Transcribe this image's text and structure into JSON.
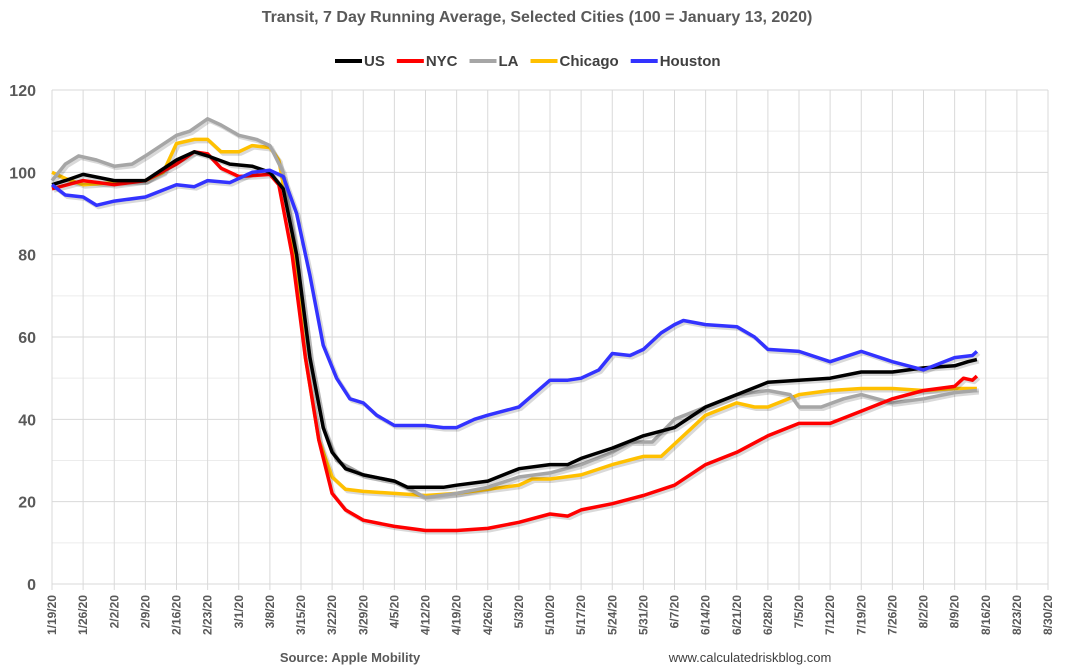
{
  "chart_data": {
    "type": "line",
    "title": "Transit, 7 Day Running Average, Selected Cities (100 = January 13, 2020)",
    "xlabel": "",
    "ylabel": "",
    "ylim": [
      0,
      120
    ],
    "yticks": [
      "0",
      "20",
      "40",
      "60",
      "80",
      "100",
      "120"
    ],
    "x_unit": "days since 1/19/20",
    "xlim": [
      0,
      224
    ],
    "xticks": [
      "1/19/20",
      "1/26/20",
      "2/2/20",
      "2/9/20",
      "2/16/20",
      "2/23/20",
      "3/1/20",
      "3/8/20",
      "3/15/20",
      "3/22/20",
      "3/29/20",
      "4/5/20",
      "4/12/20",
      "4/19/20",
      "4/26/20",
      "5/3/20",
      "5/10/20",
      "5/17/20",
      "5/24/20",
      "5/31/20",
      "6/7/20",
      "6/14/20",
      "6/21/20",
      "6/28/20",
      "7/5/20",
      "7/12/20",
      "7/19/20",
      "7/26/20",
      "8/2/20",
      "8/9/20",
      "8/16/20",
      "8/23/20",
      "8/30/20"
    ],
    "legend_position": "top",
    "grid": true,
    "source": "Source: Apple Mobility",
    "website": "www.calculatedriskblog.com",
    "series": [
      {
        "name": "US",
        "color": "#000000",
        "points": [
          [
            0,
            97
          ],
          [
            3,
            98
          ],
          [
            7,
            99.5
          ],
          [
            14,
            98
          ],
          [
            21,
            98
          ],
          [
            28,
            103
          ],
          [
            32,
            105
          ],
          [
            35,
            104
          ],
          [
            40,
            102
          ],
          [
            45,
            101.5
          ],
          [
            49,
            100
          ],
          [
            52,
            96
          ],
          [
            55,
            80
          ],
          [
            58,
            55
          ],
          [
            61,
            38
          ],
          [
            63,
            32
          ],
          [
            66,
            28
          ],
          [
            70,
            26.5
          ],
          [
            77,
            25
          ],
          [
            80,
            23.5
          ],
          [
            84,
            23.5
          ],
          [
            88,
            23.5
          ],
          [
            91,
            24
          ],
          [
            98,
            25
          ],
          [
            105,
            28
          ],
          [
            112,
            29
          ],
          [
            116,
            29
          ],
          [
            119,
            30.5
          ],
          [
            126,
            33
          ],
          [
            133,
            36
          ],
          [
            140,
            38
          ],
          [
            147,
            43
          ],
          [
            154,
            46
          ],
          [
            161,
            49
          ],
          [
            168,
            49.5
          ],
          [
            175,
            50
          ],
          [
            182,
            51.5
          ],
          [
            189,
            51.5
          ],
          [
            196,
            52.5
          ],
          [
            203,
            53
          ],
          [
            206,
            54
          ],
          [
            208,
            54.5
          ]
        ]
      },
      {
        "name": "NYC",
        "color": "#ff0000",
        "points": [
          [
            0,
            96
          ],
          [
            7,
            98
          ],
          [
            14,
            97
          ],
          [
            21,
            98
          ],
          [
            28,
            102
          ],
          [
            32,
            105
          ],
          [
            35,
            104.5
          ],
          [
            38,
            101
          ],
          [
            42,
            99
          ],
          [
            49,
            99.5
          ],
          [
            51,
            97
          ],
          [
            54,
            80
          ],
          [
            57,
            55
          ],
          [
            60,
            35
          ],
          [
            63,
            22
          ],
          [
            66,
            18
          ],
          [
            70,
            15.5
          ],
          [
            77,
            14
          ],
          [
            84,
            13
          ],
          [
            91,
            13
          ],
          [
            98,
            13.5
          ],
          [
            105,
            15
          ],
          [
            112,
            17
          ],
          [
            116,
            16.5
          ],
          [
            119,
            18
          ],
          [
            126,
            19.5
          ],
          [
            133,
            21.5
          ],
          [
            140,
            24
          ],
          [
            147,
            29
          ],
          [
            154,
            32
          ],
          [
            161,
            36
          ],
          [
            168,
            39
          ],
          [
            175,
            39
          ],
          [
            182,
            42
          ],
          [
            189,
            45
          ],
          [
            196,
            47
          ],
          [
            203,
            48
          ],
          [
            205,
            50
          ],
          [
            207,
            49.5
          ],
          [
            208,
            50.5
          ]
        ]
      },
      {
        "name": "LA",
        "color": "#a6a6a6",
        "points": [
          [
            0,
            98
          ],
          [
            3,
            102
          ],
          [
            6,
            104
          ],
          [
            10,
            103
          ],
          [
            14,
            101.5
          ],
          [
            18,
            102
          ],
          [
            21,
            104
          ],
          [
            28,
            109
          ],
          [
            31,
            110
          ],
          [
            35,
            113
          ],
          [
            38,
            111.5
          ],
          [
            42,
            109
          ],
          [
            46,
            108
          ],
          [
            49,
            106.5
          ],
          [
            52,
            100
          ],
          [
            55,
            80
          ],
          [
            58,
            55
          ],
          [
            61,
            38
          ],
          [
            64,
            30
          ],
          [
            70,
            26.5
          ],
          [
            77,
            25
          ],
          [
            84,
            21
          ],
          [
            91,
            22
          ],
          [
            98,
            23.5
          ],
          [
            105,
            26
          ],
          [
            112,
            27
          ],
          [
            119,
            29
          ],
          [
            126,
            32
          ],
          [
            130,
            34.5
          ],
          [
            135,
            34.5
          ],
          [
            140,
            40
          ],
          [
            147,
            43
          ],
          [
            154,
            46
          ],
          [
            161,
            47
          ],
          [
            166,
            46
          ],
          [
            168,
            43
          ],
          [
            173,
            43
          ],
          [
            178,
            45
          ],
          [
            182,
            46
          ],
          [
            189,
            44
          ],
          [
            196,
            45
          ],
          [
            203,
            46.5
          ],
          [
            208,
            47
          ]
        ]
      },
      {
        "name": "Chicago",
        "color": "#ffc000",
        "points": [
          [
            0,
            100
          ],
          [
            3,
            98.5
          ],
          [
            7,
            97
          ],
          [
            14,
            97.5
          ],
          [
            21,
            98
          ],
          [
            25,
            100
          ],
          [
            28,
            107
          ],
          [
            32,
            108
          ],
          [
            35,
            108
          ],
          [
            38,
            105
          ],
          [
            42,
            105
          ],
          [
            45,
            106.5
          ],
          [
            49,
            106
          ],
          [
            51,
            103
          ],
          [
            54,
            85
          ],
          [
            57,
            55
          ],
          [
            60,
            35
          ],
          [
            63,
            26
          ],
          [
            66,
            23
          ],
          [
            70,
            22.5
          ],
          [
            77,
            22
          ],
          [
            84,
            21.5
          ],
          [
            91,
            22
          ],
          [
            98,
            23
          ],
          [
            105,
            24
          ],
          [
            108,
            25.5
          ],
          [
            112,
            25.5
          ],
          [
            119,
            26.5
          ],
          [
            126,
            29
          ],
          [
            133,
            31
          ],
          [
            137,
            31
          ],
          [
            140,
            34
          ],
          [
            147,
            41
          ],
          [
            154,
            44
          ],
          [
            158,
            43
          ],
          [
            161,
            43
          ],
          [
            168,
            46
          ],
          [
            175,
            47
          ],
          [
            182,
            47.5
          ],
          [
            189,
            47.5
          ],
          [
            196,
            47
          ],
          [
            203,
            47.5
          ],
          [
            208,
            47.5
          ]
        ]
      },
      {
        "name": "Houston",
        "color": "#3333ff",
        "points": [
          [
            0,
            97
          ],
          [
            3,
            94.5
          ],
          [
            7,
            94
          ],
          [
            10,
            92
          ],
          [
            14,
            93
          ],
          [
            21,
            94
          ],
          [
            28,
            97
          ],
          [
            32,
            96.5
          ],
          [
            35,
            98
          ],
          [
            40,
            97.5
          ],
          [
            45,
            100
          ],
          [
            49,
            100.5
          ],
          [
            52,
            99
          ],
          [
            55,
            90
          ],
          [
            58,
            75
          ],
          [
            61,
            58
          ],
          [
            64,
            50
          ],
          [
            67,
            45
          ],
          [
            70,
            44
          ],
          [
            73,
            41
          ],
          [
            77,
            38.5
          ],
          [
            84,
            38.5
          ],
          [
            88,
            38
          ],
          [
            91,
            38
          ],
          [
            95,
            40
          ],
          [
            98,
            41
          ],
          [
            105,
            43
          ],
          [
            112,
            49.5
          ],
          [
            116,
            49.5
          ],
          [
            119,
            50
          ],
          [
            123,
            52
          ],
          [
            126,
            56
          ],
          [
            130,
            55.5
          ],
          [
            133,
            57
          ],
          [
            137,
            61
          ],
          [
            140,
            63
          ],
          [
            142,
            64
          ],
          [
            147,
            63
          ],
          [
            154,
            62.5
          ],
          [
            158,
            60
          ],
          [
            161,
            57
          ],
          [
            168,
            56.5
          ],
          [
            175,
            54
          ],
          [
            182,
            56.5
          ],
          [
            189,
            54
          ],
          [
            196,
            52
          ],
          [
            203,
            55
          ],
          [
            207,
            55.5
          ],
          [
            208,
            56.5
          ]
        ]
      }
    ]
  }
}
